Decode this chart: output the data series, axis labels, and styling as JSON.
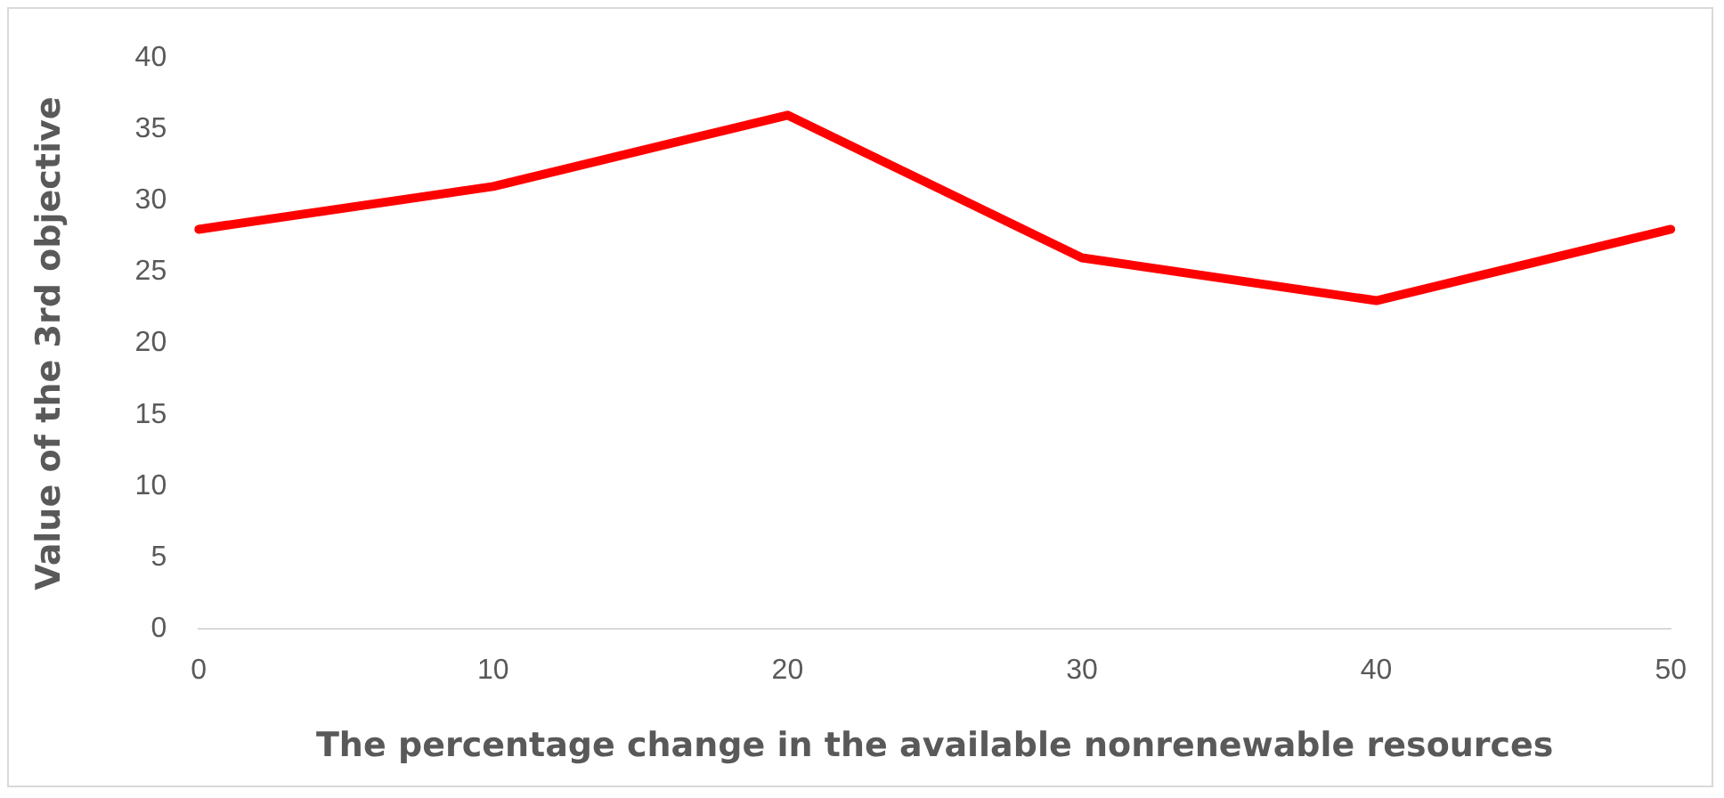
{
  "chart_data": {
    "type": "line",
    "xlabel": "The percentage change in the available nonrenewable resources",
    "ylabel": "Value of the 3rd objective",
    "categories": [
      "0",
      "10",
      "20",
      "30",
      "40",
      "50"
    ],
    "series": [
      {
        "color": "#ff0000",
        "values": [
          28,
          31,
          36,
          26,
          23,
          28
        ]
      }
    ],
    "ylim": [
      0,
      40
    ],
    "yticks": [
      0,
      5,
      10,
      15,
      20,
      25,
      30,
      35,
      40
    ],
    "grid": false,
    "legend": false,
    "marker": "none",
    "line_style": "solid"
  }
}
